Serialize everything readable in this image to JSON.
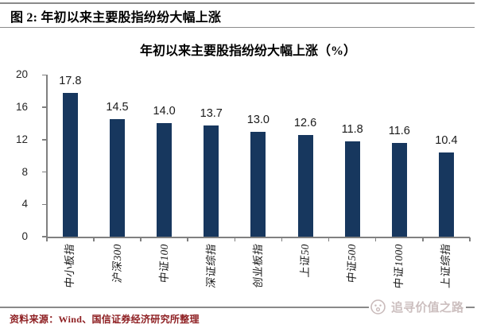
{
  "figure": {
    "header": "图 2: 年初以来主要股指纷纷大幅上涨",
    "source_note": "资料来源：Wind、国信证券经济研究所整理",
    "watermark": "追寻价值之路"
  },
  "chart_data": {
    "type": "bar",
    "title": "年初以来主要股指纷纷大幅上涨（%）",
    "categories": [
      "中小板指",
      "沪深300",
      "中证100",
      "深证综指",
      "创业板指",
      "上证50",
      "中证500",
      "中证1000",
      "上证综指"
    ],
    "values": [
      17.8,
      14.5,
      14.0,
      13.7,
      13.0,
      12.6,
      11.8,
      11.6,
      10.4
    ],
    "value_labels": [
      "17.8",
      "14.5",
      "14.0",
      "13.7",
      "13.0",
      "12.6",
      "11.8",
      "11.6",
      "10.4"
    ],
    "xlabel": "",
    "ylabel": "",
    "ylim": [
      0,
      20
    ],
    "yticks": [
      0,
      4,
      8,
      12,
      16,
      20
    ],
    "grid": false,
    "legend": null,
    "bar_color": "#17375e",
    "axis_color": "#808080",
    "label_color": "#1a1a1a",
    "source_color": "#8e1f22"
  }
}
